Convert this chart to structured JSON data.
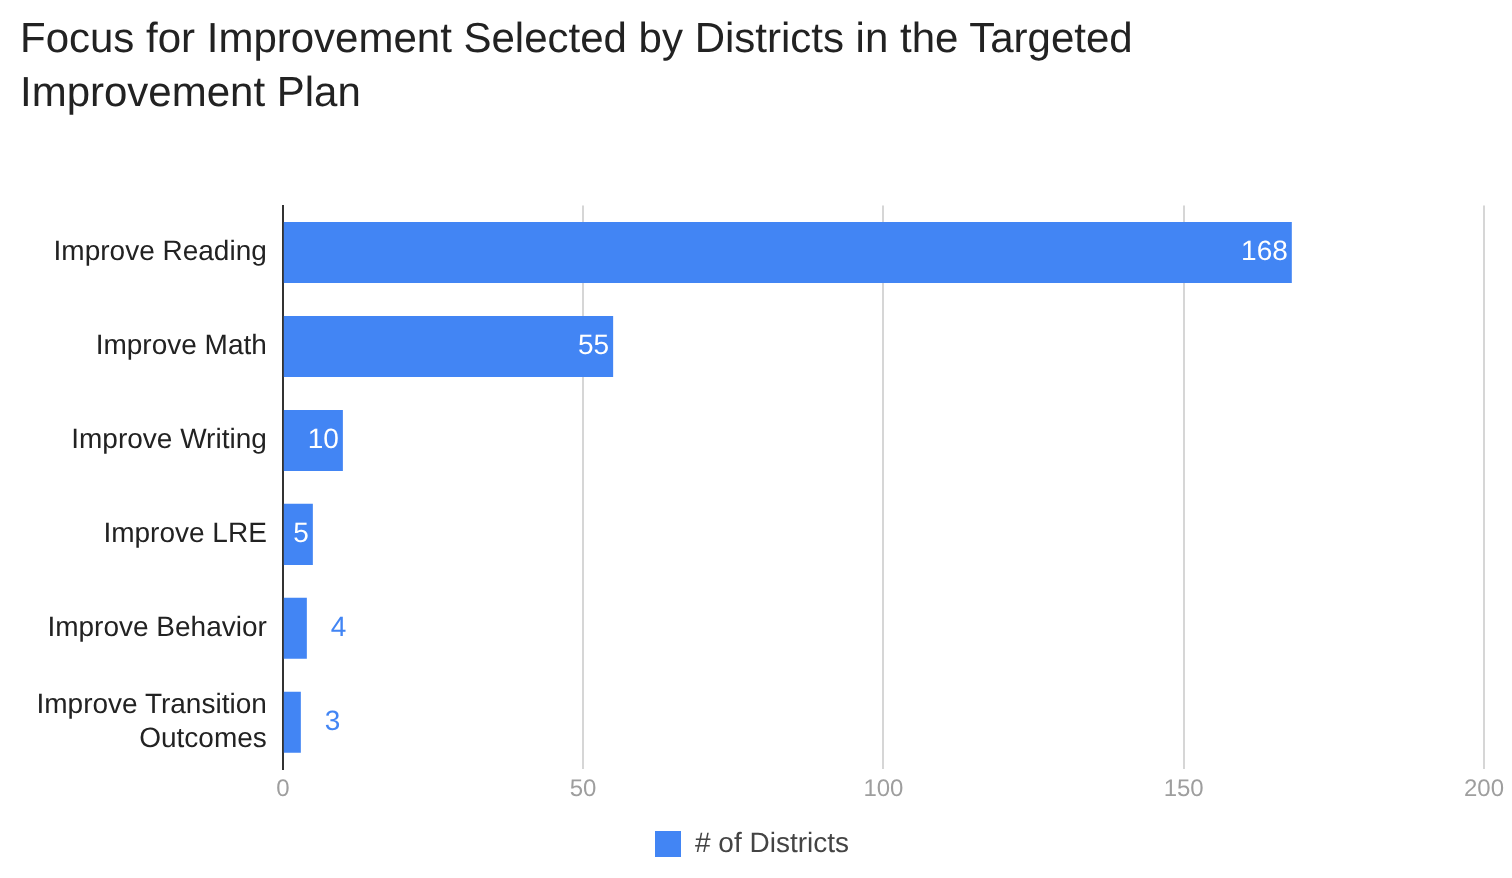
{
  "chart_data": {
    "type": "bar",
    "orientation": "horizontal",
    "title": "Focus for Improvement Selected by Districts in the Targeted Improvement Plan",
    "categories": [
      "Improve Reading",
      "Improve Math",
      "Improve Writing",
      "Improve LRE",
      "Improve Behavior",
      "Improve Transition Outcomes"
    ],
    "series": [
      {
        "name": "# of Districts",
        "color": "#4285f4",
        "values": [
          168,
          55,
          10,
          5,
          4,
          3
        ]
      }
    ],
    "xlim": [
      0,
      200
    ],
    "xticks": [
      0,
      50,
      100,
      150,
      200
    ],
    "grid": "x",
    "legend": "bottom",
    "data_labels": true
  }
}
